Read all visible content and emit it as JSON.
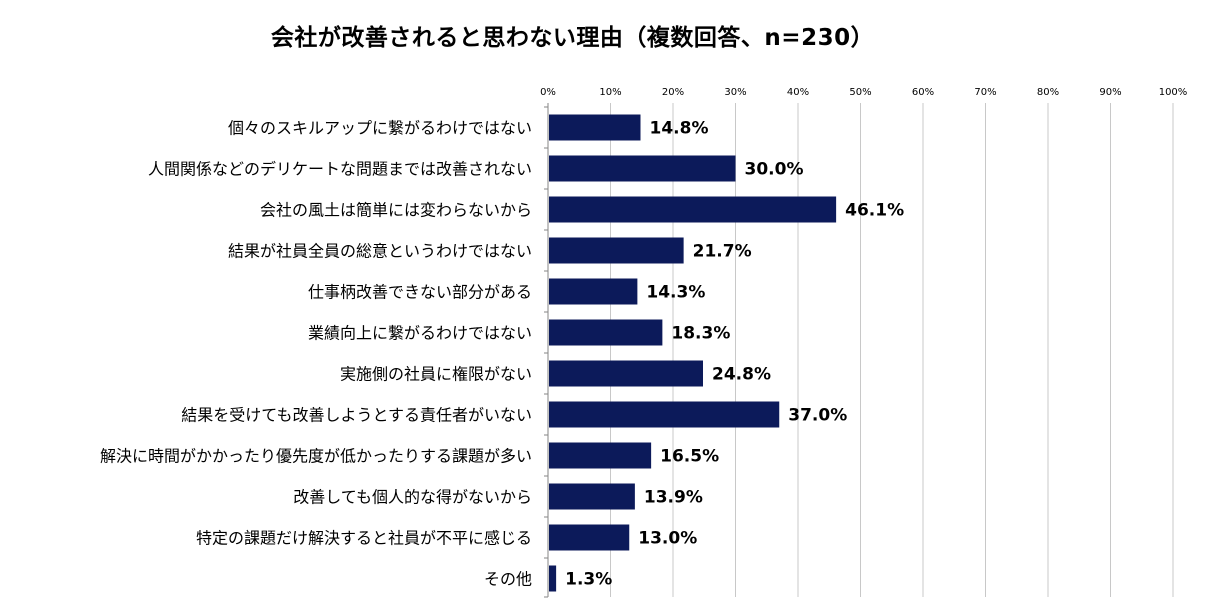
{
  "chart_data": {
    "type": "bar",
    "orientation": "horizontal",
    "title": "会社が改善されると思わない理由（複数回答、n=230）",
    "categories": [
      "個々のスキルアップに繋がるわけではない",
      "人間関係などのデリケートな問題までは改善されない",
      "会社の風土は簡単には変わらないから",
      "結果が社員全員の総意というわけではない",
      "仕事柄改善できない部分がある",
      "業績向上に繋がるわけではない",
      "実施側の社員に権限がない",
      "結果を受けても改善しようとする責任者がいない",
      "解決に時間がかかったり優先度が低かったりする課題が多い",
      "改善しても個人的な得がないから",
      "特定の課題だけ解決すると社員が不平に感じる",
      "その他"
    ],
    "values": [
      14.8,
      30.0,
      46.1,
      21.7,
      14.3,
      18.3,
      24.8,
      37.0,
      16.5,
      13.9,
      13.0,
      1.3
    ],
    "data_labels": [
      "14.8%",
      "30.0%",
      "46.1%",
      "21.7%",
      "14.3%",
      "18.3%",
      "24.8%",
      "37.0%",
      "16.5%",
      "13.9%",
      "13.0%",
      "1.3%"
    ],
    "x_ticks": [
      "0%",
      "10%",
      "20%",
      "30%",
      "40%",
      "50%",
      "60%",
      "70%",
      "80%",
      "90%",
      "100%"
    ],
    "xlim": [
      0,
      100
    ],
    "axis_position": "top",
    "grid": true,
    "legend": "none",
    "bar_color": "#0c1a5a",
    "grid_color": "#c8c8c8"
  }
}
